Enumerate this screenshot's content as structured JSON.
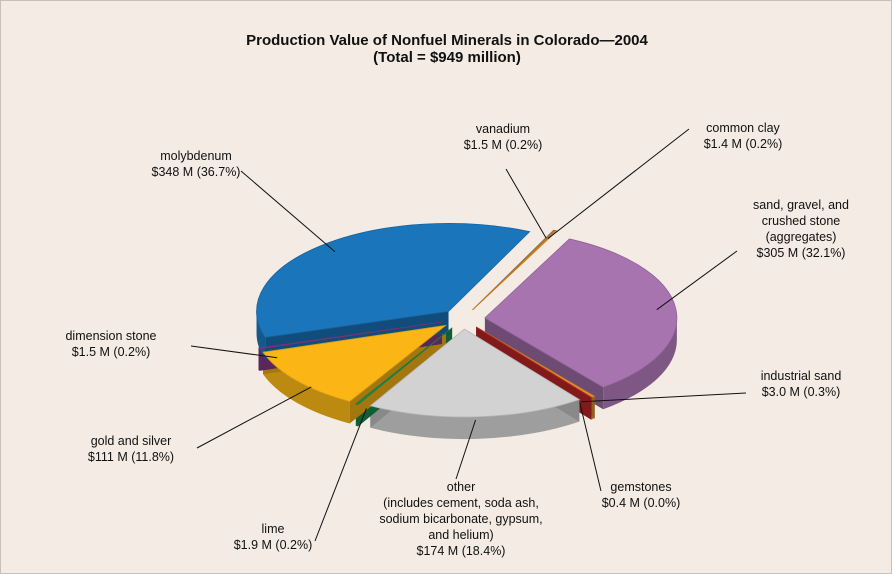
{
  "chart_data": {
    "type": "pie",
    "title": "Production Value of Nonfuel Minerals in Colorado—2004",
    "subtitle": "(Total = $949 million)",
    "categories": [
      "vanadium",
      "common clay",
      "sand, gravel, and\ncrushed stone\n(aggregates)",
      "industrial sand",
      "gemstones",
      "other\n(includes cement, soda ash,\nsodium bicarbonate, gypsum,\nand helium)",
      "lime",
      "gold and silver",
      "dimension stone",
      "molybdenum"
    ],
    "values": [
      1.5,
      1.4,
      305,
      3.0,
      0.4,
      174,
      1.9,
      111,
      1.5,
      348
    ],
    "value_labels": [
      "$1.5 M  (0.2%)",
      "$1.4 M (0.2%)",
      "$305 M (32.1%)",
      "$3.0 M (0.3%)",
      "$0.4 M (0.0%)",
      "$174 M (18.4%)",
      "$1.9 M (0.2%)",
      "$111 M (11.8%)",
      "$1.5 M (0.2%)",
      "$348 M (36.7%)"
    ],
    "colors": [
      "#a0805f",
      "#e8901a",
      "#a874b0",
      "#e0902e",
      "#c8282a",
      "#d2d2d2",
      "#1a9050",
      "#fbb616",
      "#8a3c8c",
      "#1a75bb"
    ]
  }
}
